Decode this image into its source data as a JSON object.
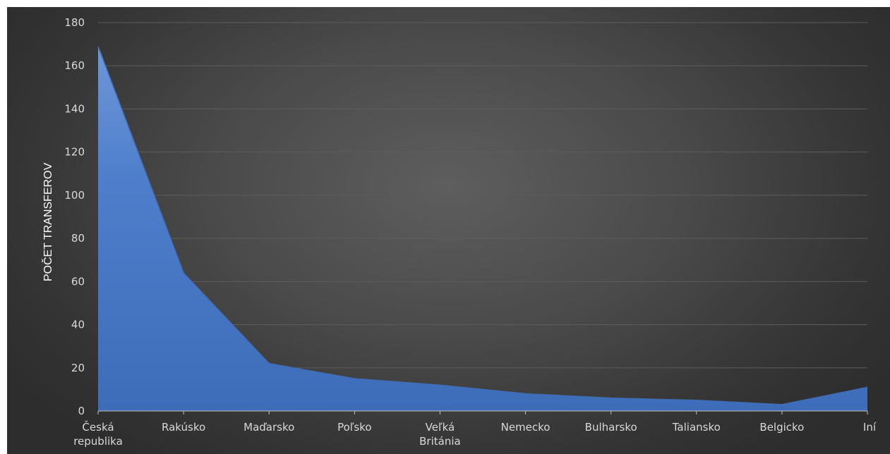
{
  "chart_data": {
    "type": "area",
    "ylabel": "POČET TRANSFEROV",
    "xlabel": "",
    "title": "",
    "ylim": [
      0,
      180
    ],
    "yticks": [
      0,
      20,
      40,
      60,
      80,
      100,
      120,
      140,
      160,
      180
    ],
    "grid": true,
    "categories": [
      [
        "Česká",
        "republika"
      ],
      [
        "Rakúsko"
      ],
      [
        "Maďarsko"
      ],
      [
        "Poľsko"
      ],
      [
        "Veľká",
        "Británia"
      ],
      [
        "Nemecko"
      ],
      [
        "Bulharsko"
      ],
      [
        "Taliansko"
      ],
      [
        "Belgicko"
      ],
      [
        "Iní"
      ]
    ],
    "series": [
      {
        "values": [
          169,
          64,
          22,
          15,
          12,
          8,
          6,
          5,
          3,
          11
        ],
        "color": "#4472c4"
      }
    ],
    "colors": {
      "background": "#4a4a4a",
      "grid": "#5c5c5c",
      "axis_line": "#bfbfbf",
      "text": "#d9d9d9"
    }
  }
}
